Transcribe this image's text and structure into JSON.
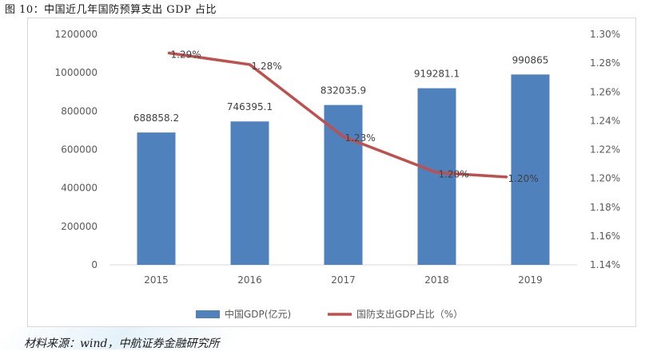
{
  "figure": {
    "title": "图 10：中国近几年国防预算支出 GDP 占比",
    "source": "材料来源：wind，中航证券金融研究所"
  },
  "colors": {
    "bar": "#4f81bd",
    "line": "#c0504d",
    "grid": "#d9d9d9",
    "text": "#595959"
  },
  "chart_data": {
    "type": "bar",
    "categories": [
      "2015",
      "2016",
      "2017",
      "2018",
      "2019"
    ],
    "series": [
      {
        "name": "中国GDP(亿元)",
        "type": "bar",
        "axis": "left",
        "values": [
          688858.2,
          746395.1,
          832035.9,
          919281.1,
          990865
        ],
        "labels": [
          "688858.2",
          "746395.1",
          "832035.9",
          "919281.1",
          "990865"
        ]
      },
      {
        "name": "国防支出GDP占比（%）",
        "type": "line",
        "axis": "right",
        "values": [
          1.287,
          1.279,
          1.229,
          1.204,
          1.201
        ],
        "labels": [
          "1.29%",
          "1.28%",
          "1.23%",
          "1.20%",
          "1.20%"
        ]
      }
    ],
    "y_left": {
      "min": 0,
      "max": 1200000,
      "step": 200000,
      "ticks": [
        "0",
        "200000",
        "400000",
        "600000",
        "800000",
        "1000000",
        "1200000"
      ]
    },
    "y_right": {
      "min": 1.14,
      "max": 1.3,
      "step": 0.02,
      "ticks": [
        "1.14%",
        "1.16%",
        "1.18%",
        "1.20%",
        "1.22%",
        "1.24%",
        "1.26%",
        "1.28%",
        "1.30%"
      ]
    },
    "grid": false,
    "legend": "bottom"
  }
}
